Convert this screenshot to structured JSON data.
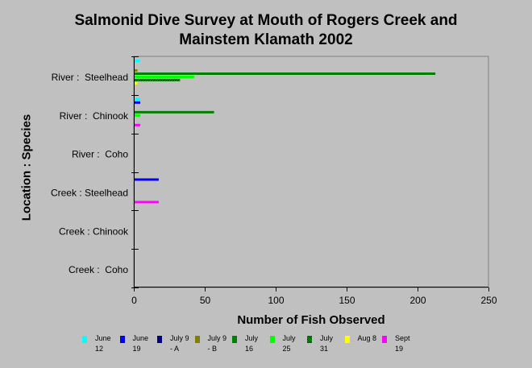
{
  "chart_data": {
    "type": "bar",
    "orientation": "horizontal",
    "title_line1": "Salmonid Dive Survey at Mouth of Rogers Creek and",
    "title_line2": "Mainstem Klamath 2002",
    "xlabel": "Number of Fish Observed",
    "ylabel": "Location : Species",
    "xlim": [
      0,
      250
    ],
    "xticks": [
      "0",
      "50",
      "100",
      "150",
      "200",
      "250"
    ],
    "grid": false,
    "legend_position": "bottom",
    "categories": [
      "River :  Steelhead",
      "River :  Chinook",
      "River :  Coho",
      "Creek : Steelhead",
      "Creek : Chinook",
      "Creek :  Coho"
    ],
    "series": [
      {
        "name": "June\n12",
        "color": "#00ffff",
        "values": [
          4,
          4,
          0,
          0,
          0,
          0
        ]
      },
      {
        "name": "June\n19",
        "color": "#0000ff",
        "values": [
          0,
          4,
          0,
          17,
          0,
          0
        ]
      },
      {
        "name": "July 9\n- A",
        "color": "#000080",
        "values": [
          0,
          0,
          0,
          0,
          0,
          0
        ]
      },
      {
        "name": "July 9\n- B",
        "color": "#808000",
        "values": [
          2,
          0,
          0,
          0,
          0,
          0
        ]
      },
      {
        "name": "July\n16",
        "color": "#008000",
        "values": [
          212,
          56,
          0,
          0,
          0,
          0
        ]
      },
      {
        "name": "July\n25",
        "color": "#00ff00",
        "values": [
          42,
          4,
          0,
          0,
          0,
          0
        ]
      },
      {
        "name": "July\n31",
        "color": "#00a000",
        "hatched": true,
        "values": [
          32,
          0,
          0,
          0,
          0,
          0
        ]
      },
      {
        "name": "Aug 8",
        "color": "#ffff00",
        "values": [
          2,
          0,
          0,
          0,
          0,
          0
        ]
      },
      {
        "name": "Sept\n19",
        "color": "#ff00ff",
        "values": [
          0,
          4,
          0,
          17,
          0,
          0
        ]
      }
    ]
  }
}
